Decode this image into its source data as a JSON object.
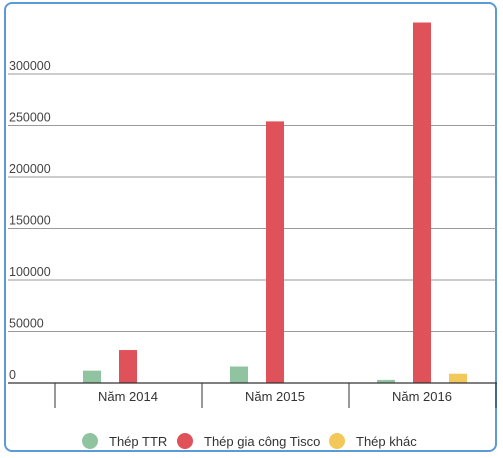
{
  "chart_data": {
    "type": "bar",
    "title": "",
    "xlabel": "",
    "ylabel": "",
    "categories": [
      "Năm 2014",
      "Năm 2015",
      "Năm 2016"
    ],
    "series": [
      {
        "name": "Thép TTR",
        "color": "#90c4a0",
        "values": [
          12000,
          16000,
          3000
        ]
      },
      {
        "name": "Thép gia công Tisco",
        "color": "#e0525a",
        "values": [
          32000,
          254000,
          350000
        ]
      },
      {
        "name": "Thép khác",
        "color": "#f2c85b",
        "values": [
          0,
          0,
          9000
        ]
      }
    ],
    "ylim": [
      0,
      350000
    ],
    "yticks": [
      0,
      50000,
      100000,
      150000,
      200000,
      250000,
      300000
    ],
    "ytick_labels": [
      "0",
      "50000",
      "100000",
      "150000",
      "200000",
      "250000",
      "300000"
    ],
    "grid": true,
    "legend_position": "bottom"
  }
}
